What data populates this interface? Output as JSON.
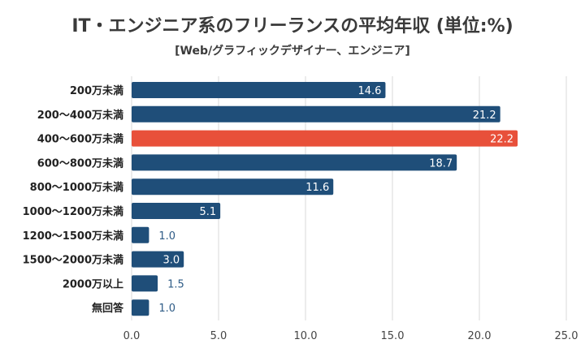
{
  "chart_data": {
    "type": "bar",
    "orientation": "horizontal",
    "title": "IT・エンジニア系のフリーランスの平均年収 (単位:%)",
    "subtitle": "[Web/グラフィックデザイナー、エンジニア]",
    "categories": [
      "200万未満",
      "200〜400万未満",
      "400〜600万未満",
      "600〜800万未満",
      "800〜1000万未満",
      "1000〜1200万未満",
      "1200〜1500万未満",
      "1500〜2000万未満",
      "2000万以上",
      "無回答"
    ],
    "values": [
      14.6,
      21.2,
      22.2,
      18.7,
      11.6,
      5.1,
      1.0,
      3.0,
      1.5,
      1.0
    ],
    "xlim": [
      0,
      25
    ],
    "x_ticks": [
      "0.0",
      "5.0",
      "10.0",
      "15.0",
      "20.0",
      "25.0"
    ],
    "highlight_index": 2,
    "colors": {
      "bar": "#1f4e79",
      "highlight": "#e8503a",
      "grid": "#d9d9d9"
    },
    "grid": true
  }
}
